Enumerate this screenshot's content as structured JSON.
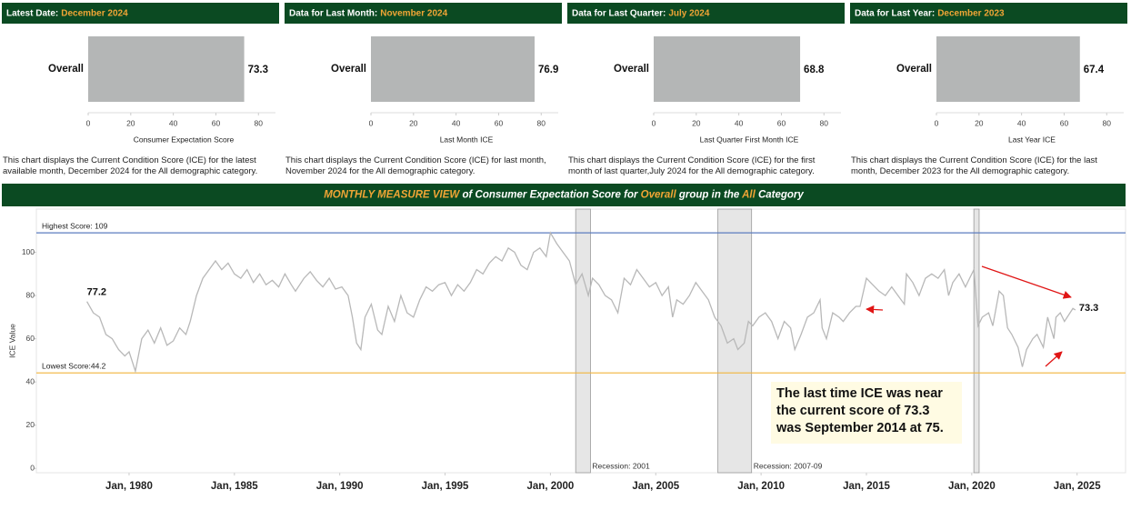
{
  "chart_data": [
    {
      "type": "hbar",
      "header_label": "Latest Date:",
      "header_value": "December 2024",
      "categories": [
        "Overall"
      ],
      "values": [
        73.3
      ],
      "color": "#b4b6b6",
      "xlim": [
        0,
        88
      ],
      "xticks": [
        0,
        20,
        40,
        60,
        80
      ],
      "x_label": "Consumer Expectation Score",
      "description": "This chart displays the Current Condition Score (ICE) for the latest available month, December 2024 for the  All demographic category."
    },
    {
      "type": "hbar",
      "header_label": "Data for Last Month:",
      "header_value": "November 2024",
      "categories": [
        "Overall"
      ],
      "values": [
        76.9
      ],
      "color": "#b4b6b6",
      "xlim": [
        0,
        88
      ],
      "xticks": [
        0,
        20,
        40,
        60,
        80
      ],
      "x_label": "Last Month ICE",
      "description": "This chart displays the Current Condition Score (ICE) for last month, November 2024 for the  All demographic category."
    },
    {
      "type": "hbar",
      "header_label": "Data for Last Quarter:",
      "header_value": "July 2024",
      "categories": [
        "Overall"
      ],
      "values": [
        68.8
      ],
      "color": "#b4b6b6",
      "xlim": [
        0,
        88
      ],
      "xticks": [
        0,
        20,
        40,
        60,
        80
      ],
      "x_label": "Last Quarter First Month ICE",
      "description": "This chart displays the Current Condition Score (ICE) for the first month of last quarter,July 2024 for the  All demographic category."
    },
    {
      "type": "hbar",
      "header_label": "Data for Last Year:",
      "header_value": "December 2023",
      "categories": [
        "Overall"
      ],
      "values": [
        67.4
      ],
      "color": "#b4b6b6",
      "xlim": [
        0,
        88
      ],
      "xticks": [
        0,
        20,
        40,
        60,
        80
      ],
      "x_label": "Last Year ICE",
      "description": "This chart displays the Current Condition Score (ICE) for the last month, December 2023 for the  All demographic category."
    },
    {
      "type": "line",
      "title_parts": [
        "MONTHLY MEASURE VIEW",
        " of Consumer Expectation Score for ",
        "Overall",
        " group in the ",
        "All",
        " Category"
      ],
      "y_label": "ICE Value",
      "color": "#b8b8b8",
      "xlim": [
        1975.6,
        2027.3
      ],
      "xticks": [
        {
          "value": 1980,
          "label": "Jan, 1980"
        },
        {
          "value": 1985,
          "label": "Jan, 1985"
        },
        {
          "value": 1990,
          "label": "Jan, 1990"
        },
        {
          "value": 1995,
          "label": "Jan, 1995"
        },
        {
          "value": 2000,
          "label": "Jan, 2000"
        },
        {
          "value": 2005,
          "label": "Jan, 2005"
        },
        {
          "value": 2010,
          "label": "Jan, 2010"
        },
        {
          "value": 2015,
          "label": "Jan, 2015"
        },
        {
          "value": 2020,
          "label": "Jan, 2020"
        },
        {
          "value": 2025,
          "label": "Jan, 2025"
        }
      ],
      "ylim": [
        -2,
        120
      ],
      "yticks": [
        0,
        20,
        40,
        60,
        80,
        100
      ],
      "reference_lines": [
        {
          "label": "Highest Score: 109",
          "value": 109,
          "color": "#5b7bbf"
        },
        {
          "label": "Lowest Score:44.2",
          "value": 44.2,
          "color": "#f2b43c"
        }
      ],
      "recessions": [
        {
          "label": "Recession: 2001",
          "start": 2001.2,
          "end": 2001.9
        },
        {
          "label": "Recession: 2007-09",
          "start": 2007.95,
          "end": 2009.55
        },
        {
          "start": 2020.1,
          "end": 2020.35
        }
      ],
      "annotation": [
        "The last time ICE was near",
        "the current score of 73.3",
        "was September 2014 at 75."
      ],
      "x": [
        1978.0,
        1978.3,
        1978.6,
        1978.9,
        1979.2,
        1979.5,
        1979.8,
        1980.0,
        1980.3,
        1980.6,
        1980.9,
        1981.2,
        1981.5,
        1981.8,
        1982.1,
        1982.4,
        1982.7,
        1982.9,
        1983.2,
        1983.5,
        1983.8,
        1984.1,
        1984.4,
        1984.7,
        1985.0,
        1985.3,
        1985.6,
        1985.9,
        1986.2,
        1986.5,
        1986.8,
        1987.1,
        1987.4,
        1987.7,
        1987.9,
        1988.3,
        1988.6,
        1988.9,
        1989.2,
        1989.5,
        1989.8,
        1990.1,
        1990.4,
        1990.6,
        1990.8,
        1991.0,
        1991.2,
        1991.5,
        1991.8,
        1992.0,
        1992.3,
        1992.6,
        1992.9,
        1993.2,
        1993.5,
        1993.8,
        1994.1,
        1994.4,
        1994.7,
        1995.0,
        1995.3,
        1995.6,
        1995.9,
        1996.2,
        1996.5,
        1996.8,
        1997.1,
        1997.4,
        1997.7,
        1998.0,
        1998.3,
        1998.6,
        1998.9,
        1999.2,
        1999.5,
        1999.8,
        2000.0,
        2000.3,
        2000.6,
        2000.9,
        2001.2,
        2001.5,
        2001.8,
        2002.0,
        2002.3,
        2002.6,
        2002.9,
        2003.2,
        2003.5,
        2003.8,
        2004.1,
        2004.4,
        2004.7,
        2005.0,
        2005.3,
        2005.6,
        2005.8,
        2006.0,
        2006.3,
        2006.6,
        2006.9,
        2007.2,
        2007.5,
        2007.8,
        2008.1,
        2008.4,
        2008.7,
        2008.9,
        2009.2,
        2009.4,
        2009.6,
        2009.9,
        2010.2,
        2010.5,
        2010.8,
        2011.1,
        2011.4,
        2011.6,
        2011.9,
        2012.2,
        2012.5,
        2012.8,
        2012.9,
        2013.1,
        2013.4,
        2013.7,
        2013.9,
        2014.2,
        2014.5,
        2014.7,
        2015.0,
        2015.3,
        2015.6,
        2015.9,
        2016.2,
        2016.5,
        2016.8,
        2016.9,
        2017.2,
        2017.5,
        2017.8,
        2018.1,
        2018.4,
        2018.7,
        2018.9,
        2019.1,
        2019.4,
        2019.7,
        2019.9,
        2020.1,
        2020.3,
        2020.5,
        2020.8,
        2021.0,
        2021.3,
        2021.5,
        2021.7,
        2021.9,
        2022.2,
        2022.4,
        2022.6,
        2022.9,
        2023.1,
        2023.4,
        2023.6,
        2023.9,
        2024.0,
        2024.2,
        2024.4,
        2024.6,
        2024.8,
        2024.92
      ],
      "values": [
        77.2,
        72,
        70,
        62,
        60,
        55,
        52,
        54,
        45,
        60,
        64,
        58,
        65,
        57,
        59,
        65,
        62,
        68,
        80,
        88,
        92,
        96,
        92,
        95,
        90,
        88,
        92,
        86,
        90,
        85,
        87,
        84,
        90,
        85,
        82,
        88,
        91,
        87,
        84,
        88,
        83,
        84,
        80,
        70,
        58,
        55,
        70,
        76,
        64,
        62,
        75,
        68,
        80,
        72,
        70,
        78,
        84,
        82,
        85,
        86,
        80,
        85,
        82,
        86,
        92,
        90,
        95,
        98,
        96,
        102,
        100,
        94,
        92,
        100,
        102,
        98,
        109,
        104,
        100,
        96,
        85,
        90,
        80,
        88,
        85,
        80,
        78,
        72,
        88,
        85,
        92,
        88,
        84,
        86,
        80,
        84,
        70,
        78,
        76,
        80,
        86,
        82,
        78,
        70,
        66,
        58,
        60,
        55,
        58,
        68,
        66,
        70,
        72,
        68,
        60,
        68,
        65,
        55,
        62,
        70,
        72,
        78,
        65,
        60,
        72,
        70,
        68,
        72,
        75,
        75,
        88,
        85,
        82,
        80,
        84,
        80,
        76,
        90,
        86,
        80,
        88,
        90,
        88,
        92,
        80,
        86,
        90,
        84,
        88,
        92,
        66,
        70,
        72,
        66,
        82,
        80,
        65,
        62,
        56,
        47,
        55,
        60,
        62,
        56,
        70,
        60,
        70,
        72,
        68,
        71,
        74,
        73.3
      ]
    }
  ]
}
